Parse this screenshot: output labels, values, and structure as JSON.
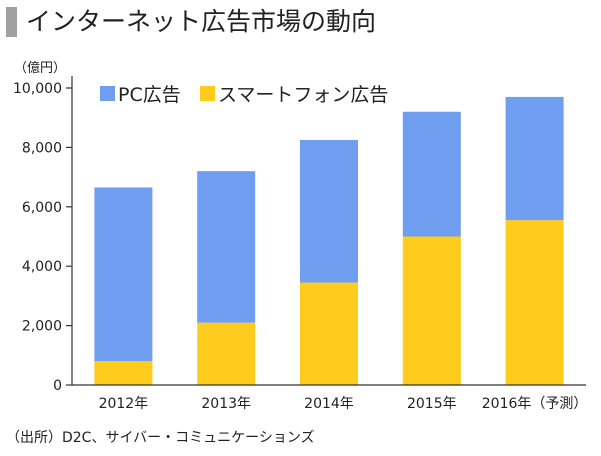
{
  "header": {
    "title": "インターネット広告市場の動向"
  },
  "unit_label": "（億円）",
  "source_note": "（出所）D2C、サイバー・コミュニケーションズ",
  "colors": {
    "pc": "#6f9ef0",
    "smartphone": "#ffcc1e",
    "axis": "#333333",
    "title_bar": "#a0a0a0"
  },
  "chart_data": {
    "type": "bar",
    "stacked": true,
    "title": "インターネット広告市場の動向",
    "ylabel": "（億円）",
    "categories": [
      "2012年",
      "2013年",
      "2014年",
      "2015年",
      "2016年（予測）"
    ],
    "series": [
      {
        "name": "スマートフォン広告",
        "values": [
          800,
          2100,
          3450,
          5000,
          5550
        ]
      },
      {
        "name": "PC広告",
        "values": [
          5850,
          5100,
          4800,
          4200,
          4150
        ]
      }
    ],
    "ylim": [
      0,
      10000
    ],
    "yticks": [
      0,
      2000,
      4000,
      6000,
      8000,
      10000
    ],
    "ytick_labels": [
      "0",
      "2,000",
      "4,000",
      "6,000",
      "8,000",
      "10,000"
    ],
    "legend": [
      "PC広告",
      "スマートフォン広告"
    ],
    "legend_position": "top-left",
    "grid": false
  }
}
